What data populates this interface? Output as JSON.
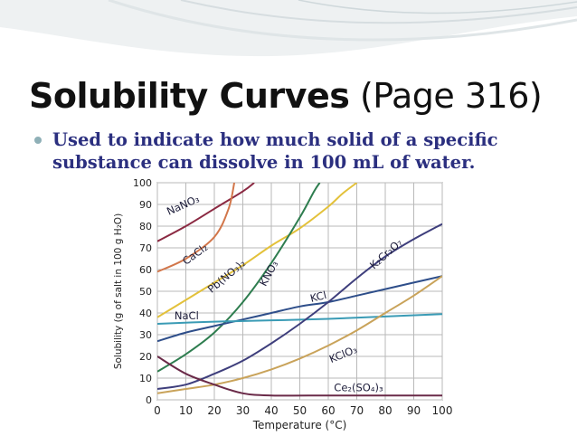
{
  "slide": {
    "title_bold": "Solubility Curves",
    "title_rest": "(Page 316)",
    "bullet_line1": "Used to indicate how much solid of a specific",
    "bullet_line2": "substance can dissolve in 100 mL of water."
  },
  "colors": {
    "title": "#111111",
    "bullet_text": "#2b2f7f",
    "bullet_dot": "#8fb0b7",
    "grid": "#b9b9b9",
    "swoosh": "#dfe5e7"
  },
  "chart_data": {
    "type": "line",
    "title": "",
    "xlabel": "Temperature (°C)",
    "ylabel": "Solubility (g of salt in 100 g H₂O)",
    "xlim": [
      0,
      100
    ],
    "ylim": [
      0,
      100
    ],
    "x_ticks": [
      "0",
      "10",
      "20",
      "30",
      "40",
      "50",
      "60",
      "70",
      "80",
      "90",
      "100"
    ],
    "y_ticks": [
      "0",
      "10",
      "20",
      "30",
      "40",
      "50",
      "60",
      "70",
      "80",
      "90",
      "100"
    ],
    "grid": true,
    "legend": "none (curves labeled directly)",
    "series": [
      {
        "name": "NaNO₃",
        "color": "#8b2942",
        "points": [
          [
            0,
            73
          ],
          [
            10,
            80
          ],
          [
            20,
            88
          ],
          [
            30,
            96
          ],
          [
            34,
            100
          ]
        ]
      },
      {
        "name": "CaCl₂",
        "color": "#d2764a",
        "points": [
          [
            0,
            59
          ],
          [
            10,
            65
          ],
          [
            20,
            75
          ],
          [
            25,
            88
          ],
          [
            27,
            100
          ]
        ]
      },
      {
        "name": "Pb(NO₃)₂",
        "color": "#e3c13a",
        "points": [
          [
            0,
            38
          ],
          [
            10,
            46
          ],
          [
            20,
            54
          ],
          [
            30,
            62
          ],
          [
            40,
            71
          ],
          [
            50,
            79
          ],
          [
            60,
            89
          ],
          [
            65,
            95
          ],
          [
            70,
            100
          ]
        ]
      },
      {
        "name": "KNO₃",
        "color": "#2e7d4f",
        "points": [
          [
            0,
            13
          ],
          [
            10,
            21
          ],
          [
            20,
            31
          ],
          [
            30,
            45
          ],
          [
            40,
            63
          ],
          [
            50,
            84
          ],
          [
            55,
            96
          ],
          [
            57,
            100
          ]
        ]
      },
      {
        "name": "KCl",
        "color": "#2e4e8a",
        "points": [
          [
            0,
            27
          ],
          [
            10,
            31
          ],
          [
            20,
            34
          ],
          [
            30,
            37
          ],
          [
            40,
            40
          ],
          [
            50,
            43
          ],
          [
            60,
            45
          ],
          [
            70,
            48
          ],
          [
            80,
            51
          ],
          [
            90,
            54
          ],
          [
            100,
            57
          ]
        ]
      },
      {
        "name": "NaCl",
        "color": "#3a9bb5",
        "points": [
          [
            0,
            35
          ],
          [
            20,
            36
          ],
          [
            40,
            36.6
          ],
          [
            60,
            37.3
          ],
          [
            80,
            38.4
          ],
          [
            100,
            39.5
          ]
        ]
      },
      {
        "name": "K₂Cr₂O₇",
        "color": "#3e3e7c",
        "points": [
          [
            0,
            5
          ],
          [
            10,
            7
          ],
          [
            20,
            12
          ],
          [
            30,
            18
          ],
          [
            40,
            26
          ],
          [
            50,
            35
          ],
          [
            60,
            45
          ],
          [
            70,
            56
          ],
          [
            80,
            66
          ],
          [
            90,
            74
          ],
          [
            100,
            81
          ]
        ]
      },
      {
        "name": "KClO₃",
        "color": "#c9a35a",
        "points": [
          [
            0,
            3
          ],
          [
            10,
            5
          ],
          [
            20,
            7
          ],
          [
            30,
            10
          ],
          [
            40,
            14
          ],
          [
            50,
            19
          ],
          [
            60,
            25
          ],
          [
            70,
            32
          ],
          [
            80,
            40
          ],
          [
            90,
            48
          ],
          [
            100,
            57
          ]
        ]
      },
      {
        "name": "Ce₂(SO₄)₃",
        "color": "#6a2a48",
        "points": [
          [
            0,
            20
          ],
          [
            10,
            12
          ],
          [
            20,
            7
          ],
          [
            30,
            3
          ],
          [
            40,
            2
          ],
          [
            60,
            2
          ],
          [
            80,
            2
          ],
          [
            100,
            2
          ]
        ]
      }
    ]
  }
}
